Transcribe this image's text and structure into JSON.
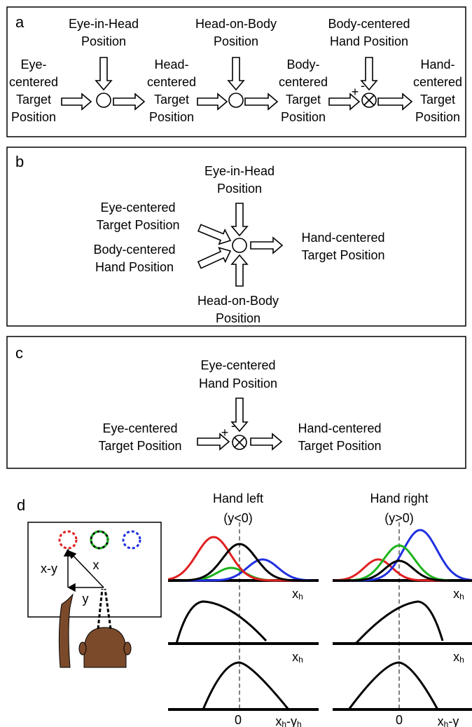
{
  "panel_a": {
    "label": "a",
    "inputs": [
      [
        "Eye-in-Head",
        "Position"
      ],
      [
        "Head-on-Body",
        "Position"
      ],
      [
        "Body-centered",
        "Hand Position"
      ]
    ],
    "stages": [
      [
        "Eye-",
        "centered",
        "Target",
        "Position"
      ],
      [
        "Head-",
        "centered",
        "Target",
        "Position"
      ],
      [
        "Body-",
        "centered",
        "Target",
        "Position"
      ],
      [
        "Hand-",
        "centered",
        "Target",
        "Position"
      ]
    ],
    "signs": [
      "+",
      "-"
    ]
  },
  "panel_b": {
    "label": "b",
    "top_input": [
      "Eye-in-Head",
      "Position"
    ],
    "left_inputs": [
      [
        "Eye-centered",
        "Target Position"
      ],
      [
        "Body-centered",
        "Hand Position"
      ]
    ],
    "bottom_input": [
      "Head-on-Body",
      "Position"
    ],
    "output": [
      "Hand-centered",
      "Target Position"
    ]
  },
  "panel_c": {
    "label": "c",
    "input": [
      "Eye-centered",
      "Hand Position"
    ],
    "target": [
      "Eye-centered",
      "Target Position"
    ],
    "output": [
      "Hand-centered",
      "Target Position"
    ],
    "signs": [
      "+",
      "-"
    ]
  },
  "panel_d": {
    "label": "d",
    "vectors": [
      "x-y",
      "x",
      "y"
    ],
    "columns": [
      {
        "title": [
          "Hand left",
          "(y<0)"
        ],
        "zero": "0",
        "axis_labels": [
          [
            "x",
            "h"
          ],
          [
            "x",
            "h"
          ],
          [
            "x",
            "h",
            "-y",
            "h"
          ]
        ]
      },
      {
        "title": [
          "Hand right",
          "(y>0)"
        ],
        "zero": "0",
        "axis_labels": [
          [
            "x",
            "h"
          ],
          [
            "x",
            "h"
          ],
          [
            "x",
            "h",
            "-y"
          ]
        ]
      }
    ]
  }
}
